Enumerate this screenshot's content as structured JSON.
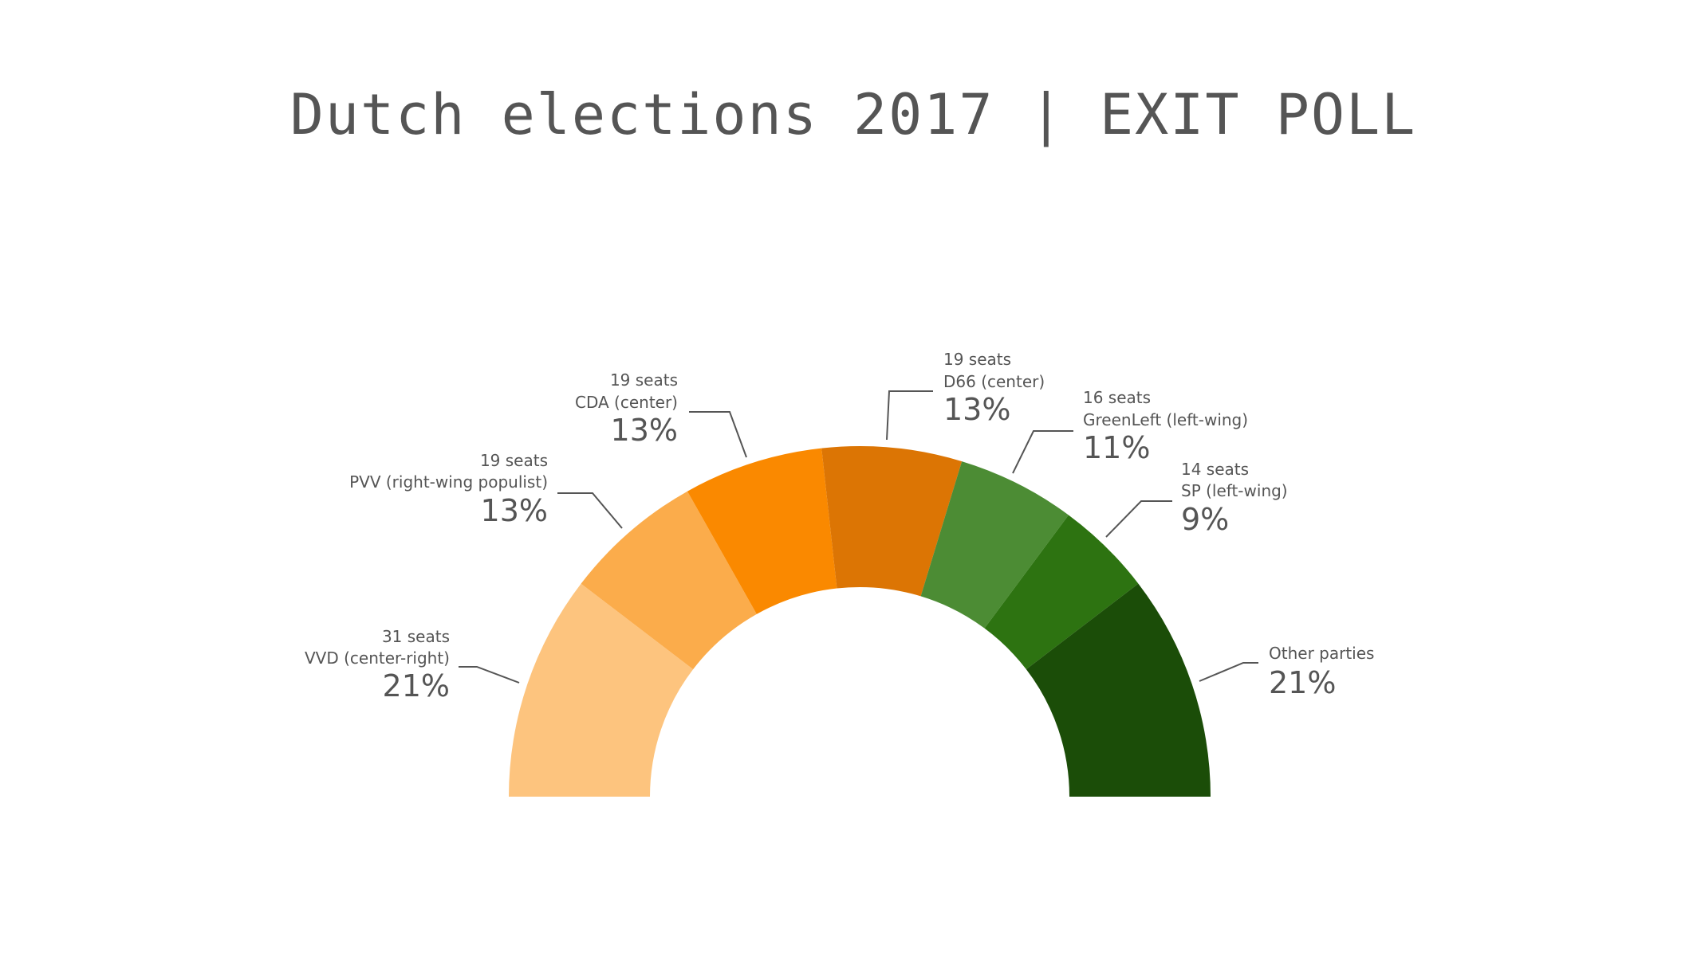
{
  "chart_data": {
    "type": "pie",
    "variant": "semicircle-donut",
    "title": "Dutch elections 2017 | EXIT POLL",
    "slices": [
      {
        "label": "VVD (center-right)",
        "seats": "31 seats",
        "percent": 21,
        "pct_label": "21%",
        "color": "#FDC47E"
      },
      {
        "label": "PVV (right-wing populist)",
        "seats": "19 seats",
        "percent": 13,
        "pct_label": "13%",
        "color": "#FBAC4B"
      },
      {
        "label": "CDA (center)",
        "seats": "19 seats",
        "percent": 13,
        "pct_label": "13%",
        "color": "#FA8900"
      },
      {
        "label": "D66 (center)",
        "seats": "19 seats",
        "percent": 13,
        "pct_label": "13%",
        "color": "#DC7504"
      },
      {
        "label": "GreenLeft (left-wing)",
        "seats": "16 seats",
        "percent": 11,
        "pct_label": "11%",
        "color": "#4C8C34"
      },
      {
        "label": "SP (left-wing)",
        "seats": "14 seats",
        "percent": 9,
        "pct_label": "9%",
        "color": "#2D7311"
      },
      {
        "label": "Other parties",
        "percent": 21,
        "pct_label": "21%",
        "color": "#1B4D08"
      }
    ]
  }
}
